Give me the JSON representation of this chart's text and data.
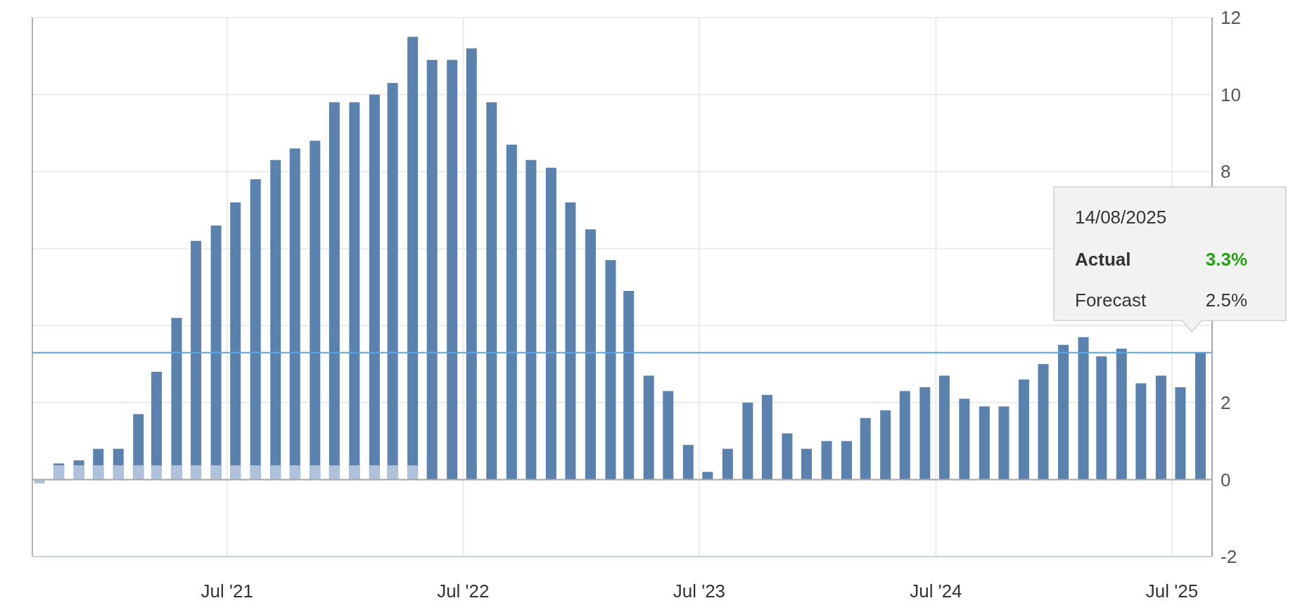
{
  "chart_data": {
    "type": "bar",
    "x": [
      "2020-09-14",
      "2020-10-14",
      "2020-11-14",
      "2020-12-14",
      "2021-01-14",
      "2021-02-14",
      "2021-03-14",
      "2021-04-14",
      "2021-05-14",
      "2021-06-14",
      "2021-07-14",
      "2021-08-14",
      "2021-09-14",
      "2021-10-14",
      "2021-11-14",
      "2021-12-14",
      "2022-01-14",
      "2022-02-14",
      "2022-03-14",
      "2022-04-14",
      "2022-05-14",
      "2022-06-14",
      "2022-07-14",
      "2022-08-14",
      "2022-09-14",
      "2022-10-14",
      "2022-11-14",
      "2022-12-14",
      "2023-01-14",
      "2023-02-14",
      "2023-03-14",
      "2023-04-14",
      "2023-05-14",
      "2023-06-14",
      "2023-07-14",
      "2023-08-14",
      "2023-09-14",
      "2023-10-14",
      "2023-11-14",
      "2023-12-14",
      "2024-01-14",
      "2024-02-14",
      "2024-03-14",
      "2024-04-14",
      "2024-05-14",
      "2024-06-14",
      "2024-07-14",
      "2024-08-14",
      "2024-09-14",
      "2024-10-14",
      "2024-11-14",
      "2024-12-14",
      "2025-01-14",
      "2025-02-14",
      "2025-03-14",
      "2025-04-14",
      "2025-05-14",
      "2025-06-14",
      "2025-07-14",
      "2025-08-14"
    ],
    "series": [
      {
        "color": "#5b82ae",
        "values": [
          null,
          0.42,
          0.5,
          0.8,
          0.8,
          1.7,
          2.8,
          4.2,
          6.2,
          6.6,
          7.2,
          7.8,
          8.3,
          8.6,
          8.8,
          9.8,
          9.8,
          10.0,
          10.3,
          11.5,
          10.9,
          10.9,
          11.2,
          9.8,
          8.7,
          8.3,
          8.1,
          7.2,
          6.5,
          5.7,
          4.9,
          2.7,
          2.3,
          0.9,
          0.2,
          0.8,
          2.0,
          2.2,
          1.2,
          0.8,
          1.0,
          1.0,
          1.6,
          1.8,
          2.3,
          2.4,
          2.7,
          2.1,
          1.9,
          1.9,
          2.6,
          3.0,
          3.5,
          3.7,
          3.2,
          3.4,
          2.5,
          2.7,
          2.4,
          3.3
        ]
      },
      {
        "color": "#aec3db",
        "values": [
          -0.1,
          0.37,
          0.37,
          0.37,
          0.37,
          0.37,
          0.37,
          0.37,
          0.37,
          0.37,
          0.37,
          0.37,
          0.37,
          0.37,
          0.37,
          0.37,
          0.37,
          0.37,
          0.37,
          0.37,
          null,
          null,
          null,
          null,
          null,
          null,
          null,
          null,
          null,
          null,
          null,
          null,
          null,
          null,
          null,
          null,
          null,
          null,
          null,
          null,
          null,
          null,
          null,
          null,
          null,
          null,
          null,
          null,
          null,
          null,
          null,
          null,
          null,
          null,
          null,
          null,
          null,
          null,
          null,
          null
        ]
      }
    ],
    "xlim": [
      "2020-09-03",
      "2025-09-01"
    ],
    "xticks": [
      {
        "value": "2021-07-01",
        "label": "Jul '21"
      },
      {
        "value": "2022-07-01",
        "label": "Jul '22"
      },
      {
        "value": "2023-07-01",
        "label": "Jul '23"
      },
      {
        "value": "2024-07-01",
        "label": "Jul '24"
      },
      {
        "value": "2025-07-01",
        "label": "Jul '25"
      }
    ],
    "ylim": [
      -2,
      12
    ],
    "yticks": [
      -2,
      0,
      2,
      {
        "value": 4,
        "label": null
      },
      {
        "value": 6,
        "label": null
      },
      8,
      10,
      12
    ],
    "grid": true,
    "ref_lines": [
      {
        "axis": "y",
        "value": 3.3,
        "color": "#5aa6ea"
      }
    ],
    "annotations": [
      "14/08/2025",
      "Actual",
      "3.3%",
      "Forecast",
      "2.5%"
    ]
  }
}
